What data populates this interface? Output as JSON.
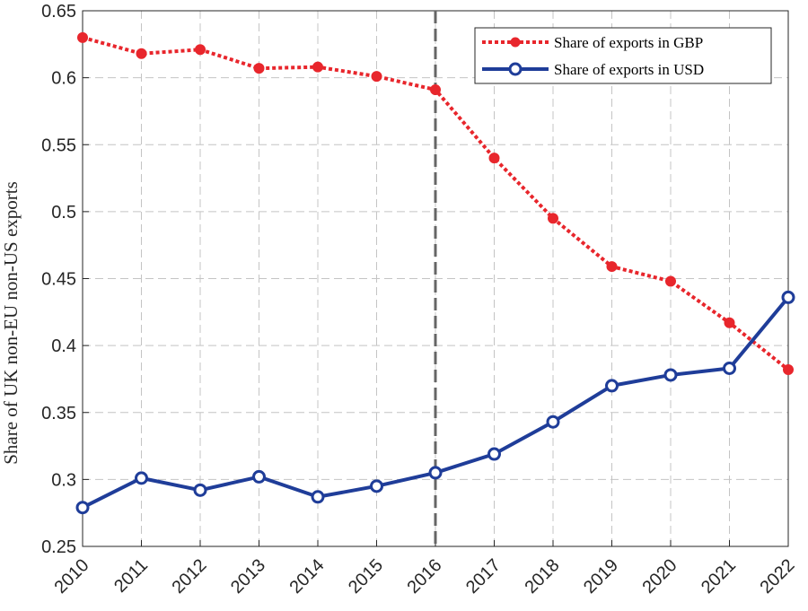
{
  "chart_data": {
    "type": "line",
    "title": "",
    "xlabel": "",
    "ylabel": "Share of UK non-EU non-US exports",
    "x": [
      "2010",
      "2011",
      "2012",
      "2013",
      "2014",
      "2015",
      "2016",
      "2017",
      "2018",
      "2019",
      "2020",
      "2021",
      "2022"
    ],
    "yticks": [
      "0.25",
      "0.3",
      "0.35",
      "0.4",
      "0.45",
      "0.5",
      "0.55",
      "0.6",
      "0.65"
    ],
    "ylim": [
      0.25,
      0.65
    ],
    "grid": true,
    "legend_position": "top-right",
    "vertical_reference_line": "2016",
    "series": [
      {
        "name": "Share of exports in GBP",
        "color": "#e8262c",
        "line_style": "dotted",
        "marker": "filled-circle",
        "values": [
          0.63,
          0.618,
          0.621,
          0.607,
          0.608,
          0.601,
          0.591,
          0.54,
          0.495,
          0.459,
          0.448,
          0.417,
          0.382
        ]
      },
      {
        "name": "Share of exports in USD",
        "color": "#1f3d99",
        "line_style": "solid",
        "marker": "open-circle",
        "values": [
          0.279,
          0.301,
          0.292,
          0.302,
          0.287,
          0.295,
          0.305,
          0.319,
          0.343,
          0.37,
          0.378,
          0.383,
          0.436
        ]
      }
    ]
  }
}
